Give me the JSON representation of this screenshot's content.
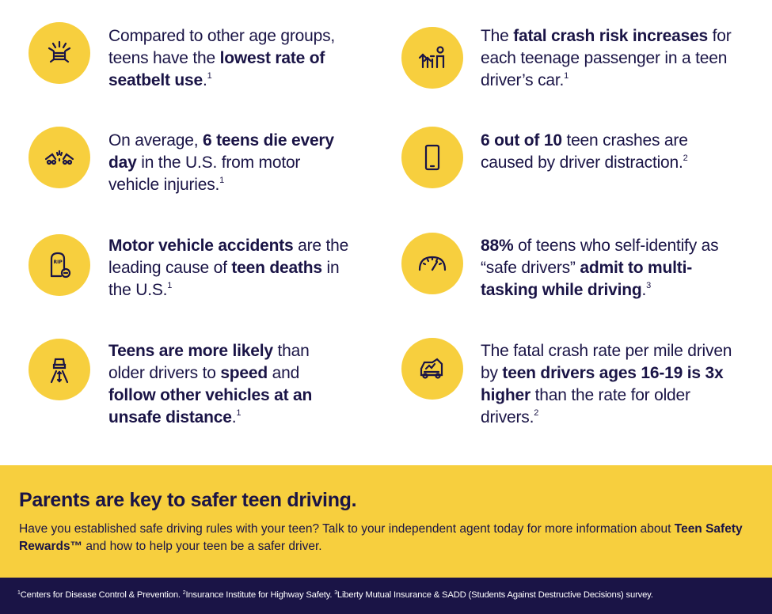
{
  "facts": [
    {
      "icon": "seatbelt-icon",
      "parts": [
        {
          "t": "Compared to other age groups, teens have the ",
          "b": false
        },
        {
          "t": "lowest rate of seatbelt use",
          "b": true
        },
        {
          "t": ".",
          "b": false
        }
      ],
      "sup": "1"
    },
    {
      "icon": "passengers-icon",
      "parts": [
        {
          "t": "The ",
          "b": false
        },
        {
          "t": "fatal crash risk increases",
          "b": true
        },
        {
          "t": " for each teenage passenger in a teen driver’s car.",
          "b": false
        }
      ],
      "sup": "1"
    },
    {
      "icon": "crash-icon",
      "parts": [
        {
          "t": "On average, ",
          "b": false
        },
        {
          "t": "6 teens die  every day",
          "b": true
        },
        {
          "t": " in the U.S. from motor vehicle injuries.",
          "b": false
        }
      ],
      "sup": "1"
    },
    {
      "icon": "phone-icon",
      "parts": [
        {
          "t": "6 out of 10",
          "b": true
        },
        {
          "t": " teen crashes are caused by driver distraction.",
          "b": false
        }
      ],
      "sup": "2"
    },
    {
      "icon": "tombstone-icon",
      "parts": [
        {
          "t": "Motor vehicle accidents",
          "b": true
        },
        {
          "t": " are the leading cause of ",
          "b": false
        },
        {
          "t": "teen deaths",
          "b": true
        },
        {
          "t": " in the U.S.",
          "b": false
        }
      ],
      "sup": "1"
    },
    {
      "icon": "speedometer-icon",
      "parts": [
        {
          "t": "88%",
          "b": true
        },
        {
          "t": " of teens who self-identify as “safe drivers” ",
          "b": false
        },
        {
          "t": "admit to multi-tasking while driving",
          "b": true
        },
        {
          "t": ".",
          "b": false
        }
      ],
      "sup": "3"
    },
    {
      "icon": "road-distance-icon",
      "parts": [
        {
          "t": "Teens are more likely",
          "b": true
        },
        {
          "t": " than older drivers to ",
          "b": false
        },
        {
          "t": "speed",
          "b": true
        },
        {
          "t": " and ",
          "b": false
        },
        {
          "t": "follow other vehicles at an unsafe distance",
          "b": true
        },
        {
          "t": ".",
          "b": false
        }
      ],
      "sup": "1"
    },
    {
      "icon": "wrecked-car-icon",
      "parts": [
        {
          "t": "The fatal crash rate per mile driven by ",
          "b": false
        },
        {
          "t": "teen drivers ages 16-19 is 3x higher",
          "b": true
        },
        {
          "t": " than the rate for older drivers.",
          "b": false
        }
      ],
      "sup": "2"
    }
  ],
  "banner": {
    "title": "Parents are key to safer teen driving.",
    "body_text": "Have you established safe driving rules with your teen? Talk to your independent agent today for more information about ",
    "body_bold": "Teen Safety Rewards™",
    "body_end": " and how to help your teen be a safer driver."
  },
  "footer": [
    {
      "sup": "1",
      "text": "Centers for Disease Control & Prevention.  "
    },
    {
      "sup": "2",
      "text": "Insurance Institute for Highway Safety. "
    },
    {
      "sup": "3",
      "text": "Liberty Mutual Insurance & SADD (Students Against Destructive Decisions) survey."
    }
  ],
  "colors": {
    "accent": "#f7cf3e",
    "navy": "#1a1446",
    "white": "#ffffff"
  }
}
